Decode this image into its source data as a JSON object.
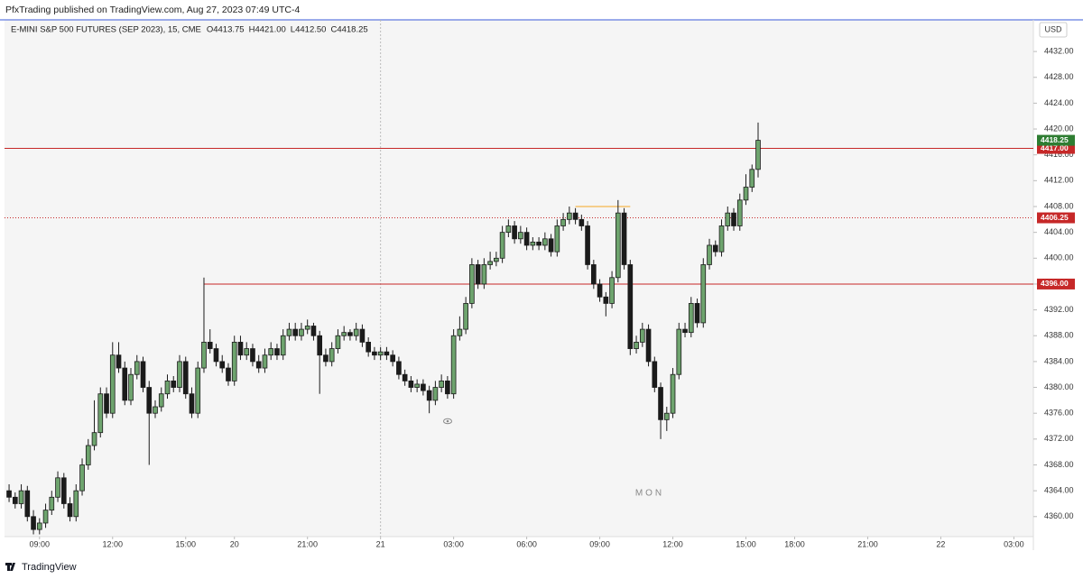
{
  "header": "PfxTrading published on TradingView.com, Aug 27, 2023 07:49 UTC-4",
  "footer": "TradingView",
  "chart_data": {
    "type": "candlestick",
    "title": "E-MINI S&P 500 FUTURES (SEP 2023), 15, CME",
    "legend": {
      "prefixes": [
        "O",
        "H",
        "L",
        "C"
      ],
      "value_labels": [
        "4413.75",
        "4421.00",
        "4412.50",
        "4418.25"
      ]
    },
    "currency": "USD",
    "watermark": "MON",
    "up_color": "#6ea46e",
    "down_color": "#1b1b1b",
    "ohlc": [
      [
        4364,
        4365,
        4362.25,
        4363
      ],
      [
        4363,
        4363.75,
        4361.25,
        4362
      ],
      [
        4362,
        4365,
        4361.25,
        4364
      ],
      [
        4364,
        4364.75,
        4359.25,
        4360
      ],
      [
        4360,
        4361,
        4357.25,
        4358
      ],
      [
        4358,
        4359.75,
        4357.25,
        4359
      ],
      [
        4359,
        4362,
        4358.25,
        4361
      ],
      [
        4361,
        4364,
        4360.25,
        4363
      ],
      [
        4363,
        4367,
        4362.25,
        4366
      ],
      [
        4366,
        4366.75,
        4361.25,
        4362
      ],
      [
        4362,
        4363,
        4359.25,
        4360
      ],
      [
        4360,
        4365,
        4359.25,
        4364
      ],
      [
        4364,
        4369,
        4363.25,
        4368
      ],
      [
        4368,
        4372,
        4367.25,
        4371
      ],
      [
        4371,
        4378,
        4370.25,
        4373
      ],
      [
        4373,
        4380,
        4372.25,
        4379
      ],
      [
        4379,
        4380,
        4375.25,
        4376
      ],
      [
        4376,
        4387,
        4375.25,
        4385
      ],
      [
        4385,
        4387,
        4382.25,
        4383
      ],
      [
        4383,
        4384,
        4377.25,
        4378
      ],
      [
        4378,
        4383,
        4377.25,
        4382
      ],
      [
        4382,
        4385,
        4381.25,
        4384
      ],
      [
        4384,
        4384.75,
        4379.25,
        4380
      ],
      [
        4380,
        4381,
        4368,
        4376
      ],
      [
        4376,
        4378,
        4375.25,
        4377
      ],
      [
        4377,
        4380,
        4376.25,
        4379
      ],
      [
        4379,
        4382,
        4378.25,
        4381
      ],
      [
        4381,
        4381.75,
        4379.25,
        4380
      ],
      [
        4380,
        4385,
        4379.25,
        4384
      ],
      [
        4384,
        4384.75,
        4378.25,
        4379
      ],
      [
        4379,
        4380,
        4375.25,
        4376
      ],
      [
        4376,
        4384,
        4375.25,
        4383
      ],
      [
        4383,
        4397,
        4382.25,
        4387
      ],
      [
        4387,
        4389,
        4385.25,
        4386
      ],
      [
        4386,
        4386.75,
        4383.25,
        4384
      ],
      [
        4384,
        4385,
        4382.25,
        4383
      ],
      [
        4383,
        4383.75,
        4380.25,
        4381
      ],
      [
        4381,
        4388,
        4380.25,
        4387
      ],
      [
        4387,
        4388,
        4384.25,
        4385
      ],
      [
        4385,
        4387,
        4384.25,
        4386
      ],
      [
        4386,
        4386.75,
        4383.25,
        4384
      ],
      [
        4384,
        4385,
        4382.25,
        4383
      ],
      [
        4383,
        4386,
        4382.25,
        4385
      ],
      [
        4385,
        4387,
        4384.25,
        4386
      ],
      [
        4386,
        4386.75,
        4384.25,
        4385
      ],
      [
        4385,
        4389,
        4384.25,
        4388
      ],
      [
        4388,
        4390,
        4387.25,
        4389
      ],
      [
        4389,
        4390,
        4387.25,
        4388
      ],
      [
        4388,
        4390,
        4387.25,
        4389
      ],
      [
        4389,
        4390.5,
        4388.25,
        4389.5
      ],
      [
        4389.5,
        4390,
        4387.25,
        4388
      ],
      [
        4388,
        4388.75,
        4379,
        4385
      ],
      [
        4385,
        4386,
        4383.25,
        4384
      ],
      [
        4384,
        4387,
        4383.25,
        4386
      ],
      [
        4386,
        4389,
        4385.25,
        4388
      ],
      [
        4388,
        4389.5,
        4387.25,
        4388.5
      ],
      [
        4388.5,
        4389,
        4387.25,
        4388
      ],
      [
        4388,
        4390,
        4387.25,
        4389
      ],
      [
        4389,
        4389.75,
        4386.25,
        4387
      ],
      [
        4387,
        4387.75,
        4384.75,
        4385.5
      ],
      [
        4385.5,
        4386.25,
        4384.25,
        4385
      ],
      [
        4385,
        4386.25,
        4384.25,
        4385.5
      ],
      [
        4385.5,
        4386.25,
        4384.25,
        4385
      ],
      [
        4385,
        4385.75,
        4383.25,
        4384
      ],
      [
        4384,
        4384.75,
        4381.25,
        4382
      ],
      [
        4382,
        4382.75,
        4380.25,
        4381
      ],
      [
        4381,
        4381.75,
        4379.25,
        4380
      ],
      [
        4380,
        4381.25,
        4379.25,
        4380.5
      ],
      [
        4380.5,
        4381.25,
        4378.75,
        4379.5
      ],
      [
        4379.5,
        4380.25,
        4376,
        4378
      ],
      [
        4378,
        4381,
        4377.25,
        4380
      ],
      [
        4380,
        4382,
        4379.25,
        4381
      ],
      [
        4381,
        4381.75,
        4378.25,
        4379
      ],
      [
        4379,
        4389,
        4378.25,
        4388
      ],
      [
        4388,
        4391,
        4387.25,
        4389
      ],
      [
        4389,
        4394,
        4388.25,
        4393
      ],
      [
        4393,
        4400,
        4392.25,
        4399
      ],
      [
        4399,
        4399.75,
        4395.25,
        4396
      ],
      [
        4396,
        4400,
        4395.25,
        4399
      ],
      [
        4399,
        4401,
        4398.25,
        4399.5
      ],
      [
        4399.5,
        4401,
        4398.75,
        4400
      ],
      [
        4400,
        4405,
        4399.25,
        4404
      ],
      [
        4404,
        4406,
        4403.25,
        4405
      ],
      [
        4405,
        4405.75,
        4402.25,
        4403
      ],
      [
        4403,
        4405,
        4402.25,
        4404
      ],
      [
        4404,
        4404.75,
        4401.25,
        4402
      ],
      [
        4402,
        4403.25,
        4401.25,
        4402.5
      ],
      [
        4402.5,
        4403.25,
        4401.25,
        4402
      ],
      [
        4402,
        4404,
        4401.25,
        4403
      ],
      [
        4403,
        4403.75,
        4400.25,
        4401
      ],
      [
        4401,
        4406,
        4400.25,
        4405
      ],
      [
        4405,
        4407,
        4404.25,
        4406
      ],
      [
        4406,
        4408,
        4405.25,
        4407
      ],
      [
        4407,
        4407.75,
        4405.25,
        4406
      ],
      [
        4406,
        4406.75,
        4404.25,
        4405
      ],
      [
        4405,
        4405.75,
        4398.25,
        4399
      ],
      [
        4399,
        4399.75,
        4395.25,
        4396
      ],
      [
        4396,
        4396.75,
        4393.25,
        4394
      ],
      [
        4394,
        4394.75,
        4391,
        4393
      ],
      [
        4393,
        4398,
        4392.25,
        4397
      ],
      [
        4397,
        4409,
        4396.25,
        4407
      ],
      [
        4407,
        4407.75,
        4398.25,
        4399
      ],
      [
        4399,
        4399.75,
        4385,
        4386
      ],
      [
        4386,
        4388,
        4385.25,
        4387
      ],
      [
        4387,
        4390,
        4386.25,
        4389
      ],
      [
        4389,
        4389.75,
        4383.25,
        4384
      ],
      [
        4384,
        4384.75,
        4379.25,
        4380
      ],
      [
        4380,
        4380.75,
        4372,
        4375
      ],
      [
        4375,
        4377,
        4373.25,
        4376
      ],
      [
        4376,
        4383,
        4375.25,
        4382
      ],
      [
        4382,
        4390,
        4381.25,
        4389
      ],
      [
        4389,
        4390,
        4387.75,
        4388.5
      ],
      [
        4388.5,
        4394,
        4387.75,
        4393
      ],
      [
        4393,
        4393.75,
        4389.25,
        4390
      ],
      [
        4390,
        4400,
        4389.25,
        4399
      ],
      [
        4399,
        4403,
        4398.25,
        4402
      ],
      [
        4402,
        4402.75,
        4400.25,
        4401
      ],
      [
        4401,
        4406,
        4400.25,
        4405
      ],
      [
        4405,
        4408,
        4404.25,
        4407
      ],
      [
        4407,
        4407.75,
        4404.25,
        4405
      ],
      [
        4405,
        4410,
        4404.25,
        4409
      ],
      [
        4409,
        4413,
        4408.25,
        4411
      ],
      [
        4411,
        4414.5,
        4410.25,
        4413.75
      ],
      [
        4413.75,
        4421,
        4412.5,
        4418.25
      ]
    ],
    "xlim": [
      -0.75,
      168.2
    ],
    "xticks": [
      {
        "value": 5,
        "label": "09:00"
      },
      {
        "value": 17,
        "label": "12:00"
      },
      {
        "value": 29,
        "label": "15:00"
      },
      {
        "value": 37,
        "label": "20"
      },
      {
        "value": 49,
        "label": "21:00"
      },
      {
        "value": 61,
        "label": "21"
      },
      {
        "value": 73,
        "label": "03:00"
      },
      {
        "value": 85,
        "label": "06:00"
      },
      {
        "value": 97,
        "label": "09:00"
      },
      {
        "value": 109,
        "label": "12:00"
      },
      {
        "value": 121,
        "label": "15:00"
      },
      {
        "value": 129,
        "label": "18:00"
      },
      {
        "value": 141,
        "label": "21:00"
      },
      {
        "value": 153,
        "label": "22"
      },
      {
        "value": 165,
        "label": "03:00"
      }
    ],
    "day_divider": 61,
    "ylim": [
      4356.9,
      4436.9
    ],
    "yticks": [
      {
        "value": 4360,
        "label": "4360.00"
      },
      {
        "value": 4364,
        "label": "4364.00"
      },
      {
        "value": 4368,
        "label": "4368.00"
      },
      {
        "value": 4372,
        "label": "4372.00"
      },
      {
        "value": 4376,
        "label": "4376.00"
      },
      {
        "value": 4380,
        "label": "4380.00"
      },
      {
        "value": 4384,
        "label": "4384.00"
      },
      {
        "value": 4388,
        "label": "4388.00"
      },
      {
        "value": 4392,
        "label": "4392.00"
      },
      {
        "value": 4396,
        "label": "4396.00"
      },
      {
        "value": 4400,
        "label": "4400.00"
      },
      {
        "value": 4404,
        "label": "4404.00"
      },
      {
        "value": 4408,
        "label": "4408.00"
      },
      {
        "value": 4412,
        "label": "4412.00"
      },
      {
        "value": 4416,
        "label": "4416.00"
      },
      {
        "value": 4420,
        "label": "4420.00"
      },
      {
        "value": 4424,
        "label": "4424.00"
      },
      {
        "value": 4428,
        "label": "4428.00"
      },
      {
        "value": 4432,
        "label": "4432.00"
      }
    ],
    "levels": [
      {
        "value": 4417,
        "label": "4417.00",
        "style": "solid",
        "color": "#c62828",
        "from": -0.75
      },
      {
        "value": 4406.25,
        "label": "4406.25",
        "style": "dotted",
        "color": "#c62828",
        "from": -0.75
      },
      {
        "value": 4396,
        "label": "4396.00",
        "style": "solid",
        "color": "#c62828",
        "from": 32
      }
    ],
    "segments": [
      {
        "value": 4408,
        "from": 93,
        "to": 102,
        "color": "#f5a623"
      }
    ],
    "last_price_color": "#2e7d32"
  }
}
